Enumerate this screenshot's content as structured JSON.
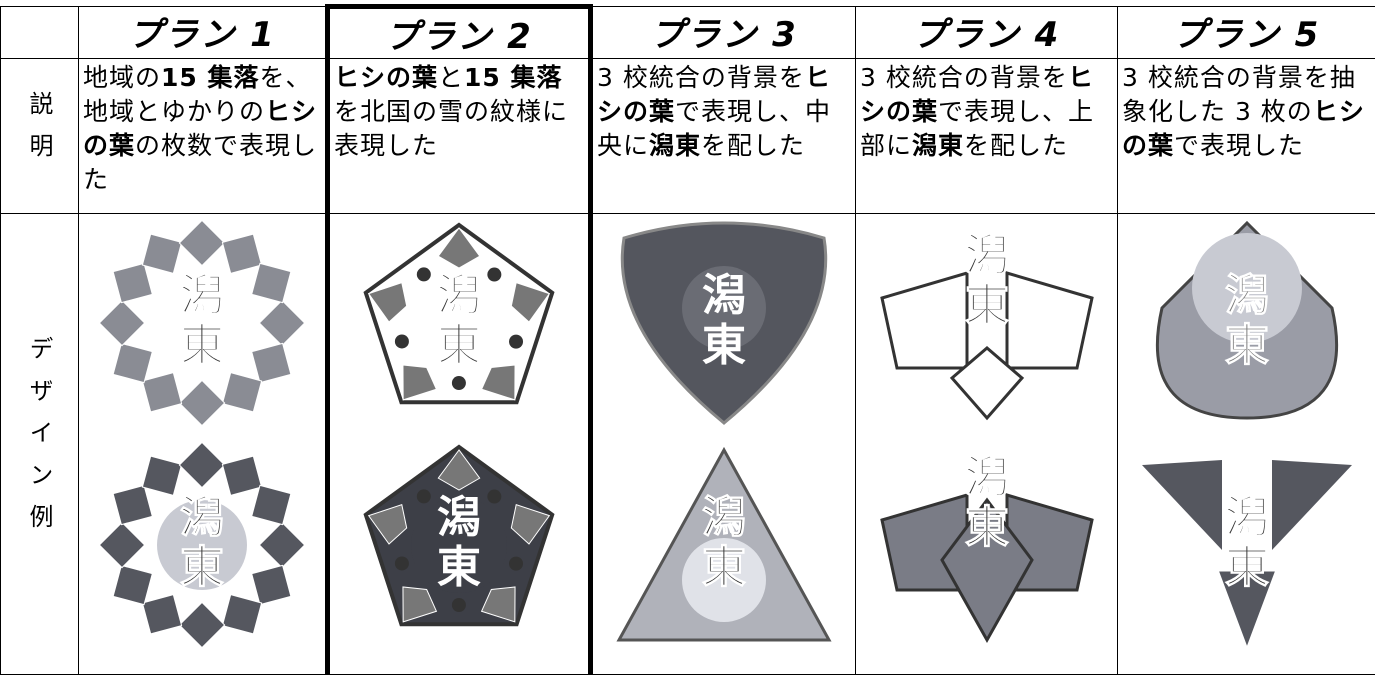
{
  "table": {
    "row_labels": [
      "説明",
      "デザイン例"
    ],
    "plans": [
      {
        "name": "プラン 1",
        "description": [
          {
            "text": "地域の",
            "bold": false
          },
          {
            "text": "15 集落",
            "bold": true
          },
          {
            "text": "を、地域とゆかりの",
            "bold": false
          },
          {
            "text": "ヒシの葉",
            "bold": true
          },
          {
            "text": "の枚数で表現した",
            "bold": false
          }
        ],
        "designs": [
          [
            "潟",
            "東"
          ],
          [
            "潟",
            "東"
          ]
        ]
      },
      {
        "name": "プラン 2",
        "description": [
          {
            "text": "ヒシの葉",
            "bold": true
          },
          {
            "text": "と",
            "bold": false
          },
          {
            "text": "15 集落",
            "bold": true
          },
          {
            "text": "を北国の雪の紋様に表現した",
            "bold": false
          }
        ],
        "designs": [
          [
            "潟",
            "東"
          ],
          [
            "潟",
            "東"
          ]
        ]
      },
      {
        "name": "プラン 3",
        "description": [
          {
            "text": "3 校統合の背景を",
            "bold": false
          },
          {
            "text": "ヒシの葉",
            "bold": true
          },
          {
            "text": "で表現し、中央に",
            "bold": false
          },
          {
            "text": "潟東",
            "bold": true
          },
          {
            "text": "を配した",
            "bold": false
          }
        ],
        "designs": [
          [
            "潟",
            "東"
          ],
          [
            "潟",
            "東"
          ]
        ]
      },
      {
        "name": "プラン 4",
        "description": [
          {
            "text": "3 校統合の背景を",
            "bold": false
          },
          {
            "text": "ヒシの葉",
            "bold": true
          },
          {
            "text": "で表現し、上部に",
            "bold": false
          },
          {
            "text": "潟東",
            "bold": true
          },
          {
            "text": "を配した",
            "bold": false
          }
        ],
        "designs": [
          [
            "潟",
            "東"
          ],
          [
            "潟",
            "東"
          ]
        ]
      },
      {
        "name": "プラン 5",
        "description": [
          {
            "text": "3 校統合の背景を抽象化した 3 枚の",
            "bold": false
          },
          {
            "text": "ヒシの葉",
            "bold": true
          },
          {
            "text": "で表現した",
            "bold": false
          }
        ],
        "designs": [
          [
            "潟",
            "東"
          ],
          [
            "潟",
            "東"
          ]
        ]
      }
    ]
  }
}
